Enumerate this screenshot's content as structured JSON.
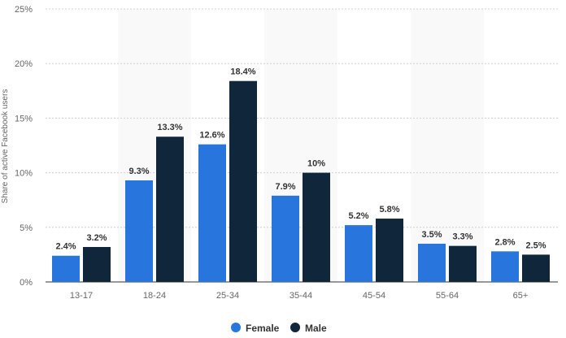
{
  "chart_data": {
    "type": "bar",
    "categories": [
      "13-17",
      "18-24",
      "25-34",
      "35-44",
      "45-54",
      "55-64",
      "65+"
    ],
    "series": [
      {
        "name": "Female",
        "color": "#2876dd",
        "values": [
          2.4,
          9.3,
          12.6,
          7.9,
          5.2,
          3.5,
          2.8
        ],
        "labels": [
          "2.4%",
          "9.3%",
          "12.6%",
          "7.9%",
          "5.2%",
          "3.5%",
          "2.8%"
        ]
      },
      {
        "name": "Male",
        "color": "#10263b",
        "values": [
          3.2,
          13.3,
          18.4,
          10,
          5.8,
          3.3,
          2.5
        ],
        "labels": [
          "3.2%",
          "13.3%",
          "18.4%",
          "10%",
          "5.8%",
          "3.3%",
          "2.5%"
        ]
      }
    ],
    "ylabel": "Share of active Facebook users",
    "ylim": [
      0,
      25
    ],
    "yticks": [
      0,
      5,
      10,
      15,
      20,
      25
    ],
    "ytick_labels": [
      "0%",
      "5%",
      "10%",
      "15%",
      "20%",
      "25%"
    ],
    "grid": true,
    "legend": "bottom-center"
  }
}
